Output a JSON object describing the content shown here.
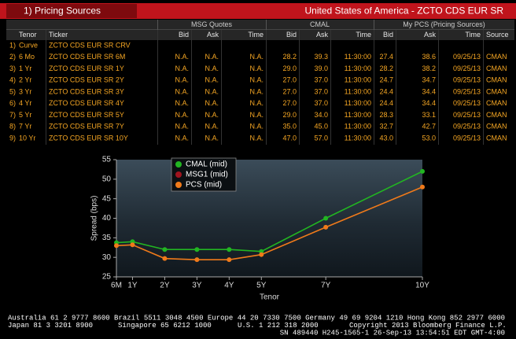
{
  "header": {
    "tab": "1) Pricing Sources",
    "title": "United States of America - ZCTO CDS EUR SR"
  },
  "table": {
    "groups": [
      "MSG Quotes",
      "CMAL",
      "My PCS (Pricing Sources)"
    ],
    "columns": [
      "Tenor",
      "Ticker",
      "Bid",
      "Ask",
      "Time",
      "Bid",
      "Ask",
      "Time",
      "Bid",
      "Ask",
      "Time",
      "Source"
    ],
    "rows": [
      {
        "num": "1)",
        "cells": [
          "Curve",
          "ZCTO CDS EUR SR CRV"
        ]
      },
      {
        "num": "2)",
        "cells": [
          "6 Mo",
          "ZCTO CDS EUR SR 6M",
          "N.A.",
          "N.A.",
          "N.A.",
          "28.2",
          "39.3",
          "11:30:00",
          "27.4",
          "38.6",
          "09/25/13",
          "CMAN"
        ]
      },
      {
        "num": "3)",
        "cells": [
          "1 Yr",
          "ZCTO CDS EUR SR 1Y",
          "N.A.",
          "N.A.",
          "N.A.",
          "29.0",
          "39.0",
          "11:30:00",
          "28.2",
          "38.2",
          "09/25/13",
          "CMAN"
        ]
      },
      {
        "num": "4)",
        "cells": [
          "2 Yr",
          "ZCTO CDS EUR SR 2Y",
          "N.A.",
          "N.A.",
          "N.A.",
          "27.0",
          "37.0",
          "11:30:00",
          "24.7",
          "34.7",
          "09/25/13",
          "CMAN"
        ]
      },
      {
        "num": "5)",
        "cells": [
          "3 Yr",
          "ZCTO CDS EUR SR 3Y",
          "N.A.",
          "N.A.",
          "N.A.",
          "27.0",
          "37.0",
          "11:30:00",
          "24.4",
          "34.4",
          "09/25/13",
          "CMAN"
        ]
      },
      {
        "num": "6)",
        "cells": [
          "4 Yr",
          "ZCTO CDS EUR SR 4Y",
          "N.A.",
          "N.A.",
          "N.A.",
          "27.0",
          "37.0",
          "11:30:00",
          "24.4",
          "34.4",
          "09/25/13",
          "CMAN"
        ]
      },
      {
        "num": "7)",
        "cells": [
          "5 Yr",
          "ZCTO CDS EUR SR 5Y",
          "N.A.",
          "N.A.",
          "N.A.",
          "29.0",
          "34.0",
          "11:30:00",
          "28.3",
          "33.1",
          "09/25/13",
          "CMAN"
        ]
      },
      {
        "num": "8)",
        "cells": [
          "7 Yr",
          "ZCTO CDS EUR SR 7Y",
          "N.A.",
          "N.A.",
          "N.A.",
          "35.0",
          "45.0",
          "11:30:00",
          "32.7",
          "42.7",
          "09/25/13",
          "CMAN"
        ]
      },
      {
        "num": "9)",
        "cells": [
          "10 Yr",
          "ZCTO CDS EUR SR 10Y",
          "N.A.",
          "N.A.",
          "N.A.",
          "47.0",
          "57.0",
          "11:30:00",
          "43.0",
          "53.0",
          "09/25/13",
          "CMAN"
        ]
      }
    ]
  },
  "chart_data": {
    "type": "line",
    "xlabel": "Tenor",
    "ylabel": "Spread (bps)",
    "x": [
      0.5,
      1,
      2,
      3,
      4,
      5,
      7,
      10
    ],
    "xlim": [
      0.5,
      10
    ],
    "xticks": [
      {
        "value": 0.5,
        "label": "6M"
      },
      {
        "value": 1,
        "label": "1Y"
      },
      {
        "value": 2,
        "label": "2Y"
      },
      {
        "value": 3,
        "label": "3Y"
      },
      {
        "value": 4,
        "label": "4Y"
      },
      {
        "value": 5,
        "label": "5Y"
      },
      {
        "value": 7,
        "label": "7Y"
      },
      {
        "value": 10,
        "label": "10Y"
      }
    ],
    "ylim": [
      25,
      55
    ],
    "yticks": [
      25,
      30,
      35,
      40,
      45,
      50,
      55
    ],
    "legend": "upper left",
    "series": [
      {
        "name": "CMAL (mid)",
        "color": "#22b522",
        "values": [
          33.75,
          34,
          32,
          32,
          32,
          31.5,
          40,
          52
        ]
      },
      {
        "name": "MSG1 (mid)",
        "color": "#a0141e",
        "values": [
          null,
          null,
          null,
          null,
          null,
          null,
          null,
          null
        ]
      },
      {
        "name": "PCS (mid)",
        "color": "#f07a1a",
        "values": [
          33,
          33.2,
          29.7,
          29.4,
          29.4,
          30.7,
          37.7,
          48
        ]
      }
    ]
  },
  "footer": {
    "line1": "Australia 61 2 9777 8600 Brazil 5511 3048 4500 Europe 44 20 7330 7500 Germany 49 69 9204 1210 Hong Kong 852 2977 6000",
    "line2": [
      "Japan 81 3 3201 8900",
      "Singapore 65 6212 1000",
      "U.S. 1 212 318 2000",
      "Copyright 2013 Bloomberg Finance L.P."
    ],
    "line3": "SN 489440 H245-1565-1 26-Sep-13 13:54:51 EDT  GMT-4:00"
  }
}
